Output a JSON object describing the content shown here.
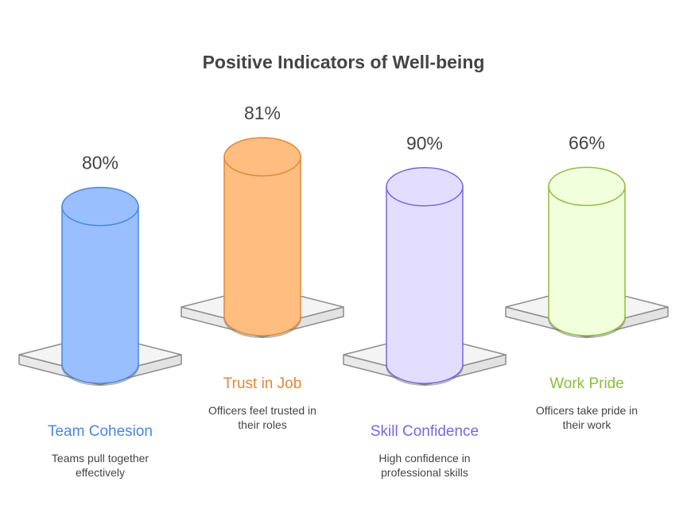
{
  "chart_data": {
    "type": "bar",
    "title": "Positive Indicators of Well-being",
    "categories": [
      "Team Cohesion",
      "Trust in Job",
      "Skill Confidence",
      "Work Pride"
    ],
    "values": [
      80,
      81,
      90,
      66
    ],
    "value_labels": [
      "80%",
      "81%",
      "90%",
      "66%"
    ],
    "descriptions": [
      [
        "Teams pull together",
        "effectively"
      ],
      [
        "Officers feel trusted in",
        "their roles"
      ],
      [
        "High confidence in",
        "professional skills"
      ],
      [
        "Officers take pride in",
        "their work"
      ]
    ],
    "colors": [
      {
        "fill": "#99bfff",
        "stroke": "#4a86e0",
        "text": "#4a86e0"
      },
      {
        "fill": "#ffbd80",
        "stroke": "#e08838",
        "text": "#e08838"
      },
      {
        "fill": "#e3deff",
        "stroke": "#7a66e0",
        "text": "#7a66e0"
      },
      {
        "fill": "#f2ffdc",
        "stroke": "#8fbd3c",
        "text": "#8fbd3c"
      }
    ],
    "unit": "%"
  }
}
